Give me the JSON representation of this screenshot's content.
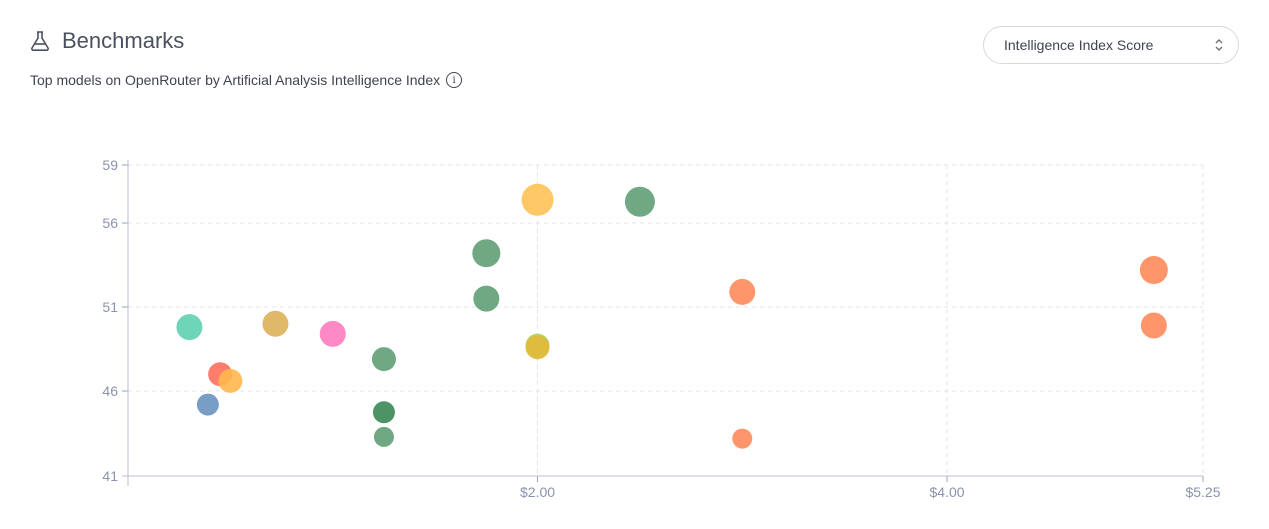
{
  "header": {
    "icon": "flask-icon",
    "title": "Benchmarks",
    "subtitle": "Top models on OpenRouter by Artificial Analysis Intelligence Index",
    "info_icon": "info-icon"
  },
  "selector": {
    "value": "Intelligence Index Score",
    "icon": "chevron-up-down-icon"
  },
  "chart_data": {
    "type": "scatter",
    "title": "",
    "xlabel": "",
    "ylabel": "",
    "xlim": [
      0,
      5.25
    ],
    "ylim": [
      41,
      59
    ],
    "x_ticks": [
      {
        "value": 2,
        "label": "$2.00"
      },
      {
        "value": 4,
        "label": "$4.00"
      },
      {
        "value": 5.25,
        "label": "$5.25"
      }
    ],
    "y_ticks": [
      41,
      46,
      51,
      56,
      59
    ],
    "grid": true,
    "points": [
      {
        "x": 0.3,
        "y": 49.8,
        "size": 13,
        "color": "#5fd0b0"
      },
      {
        "x": 0.45,
        "y": 47.0,
        "size": 12,
        "color": "#ff6f5a"
      },
      {
        "x": 0.5,
        "y": 46.6,
        "size": 12,
        "color": "#ffb84d"
      },
      {
        "x": 0.39,
        "y": 45.2,
        "size": 11,
        "color": "#6a93bf"
      },
      {
        "x": 0.72,
        "y": 50.0,
        "size": 13,
        "color": "#dbb05a"
      },
      {
        "x": 1.0,
        "y": 49.4,
        "size": 13,
        "color": "#ff7cbf"
      },
      {
        "x": 1.25,
        "y": 47.9,
        "size": 12,
        "color": "#5f9e75"
      },
      {
        "x": 1.25,
        "y": 44.75,
        "size": 11,
        "color": "#3a8754"
      },
      {
        "x": 1.25,
        "y": 43.3,
        "size": 10,
        "color": "#5f9e75"
      },
      {
        "x": 1.75,
        "y": 54.2,
        "size": 14,
        "color": "#5f9e75"
      },
      {
        "x": 1.75,
        "y": 51.5,
        "size": 13,
        "color": "#5f9e75"
      },
      {
        "x": 2.0,
        "y": 57.2,
        "size": 16,
        "color": "#ffc257"
      },
      {
        "x": 2.0,
        "y": 48.7,
        "size": 12,
        "color": "#a6d65a"
      },
      {
        "x": 2.0,
        "y": 48.6,
        "size": 12,
        "color": "#e2b83a"
      },
      {
        "x": 2.5,
        "y": 57.1,
        "size": 15,
        "color": "#5f9e75"
      },
      {
        "x": 3.0,
        "y": 51.9,
        "size": 13,
        "color": "#ff8a5a"
      },
      {
        "x": 3.0,
        "y": 43.2,
        "size": 10,
        "color": "#ff8a5a"
      },
      {
        "x": 5.01,
        "y": 53.2,
        "size": 14,
        "color": "#ff8a5a"
      },
      {
        "x": 5.01,
        "y": 49.9,
        "size": 13,
        "color": "#ff8a5a"
      }
    ]
  }
}
